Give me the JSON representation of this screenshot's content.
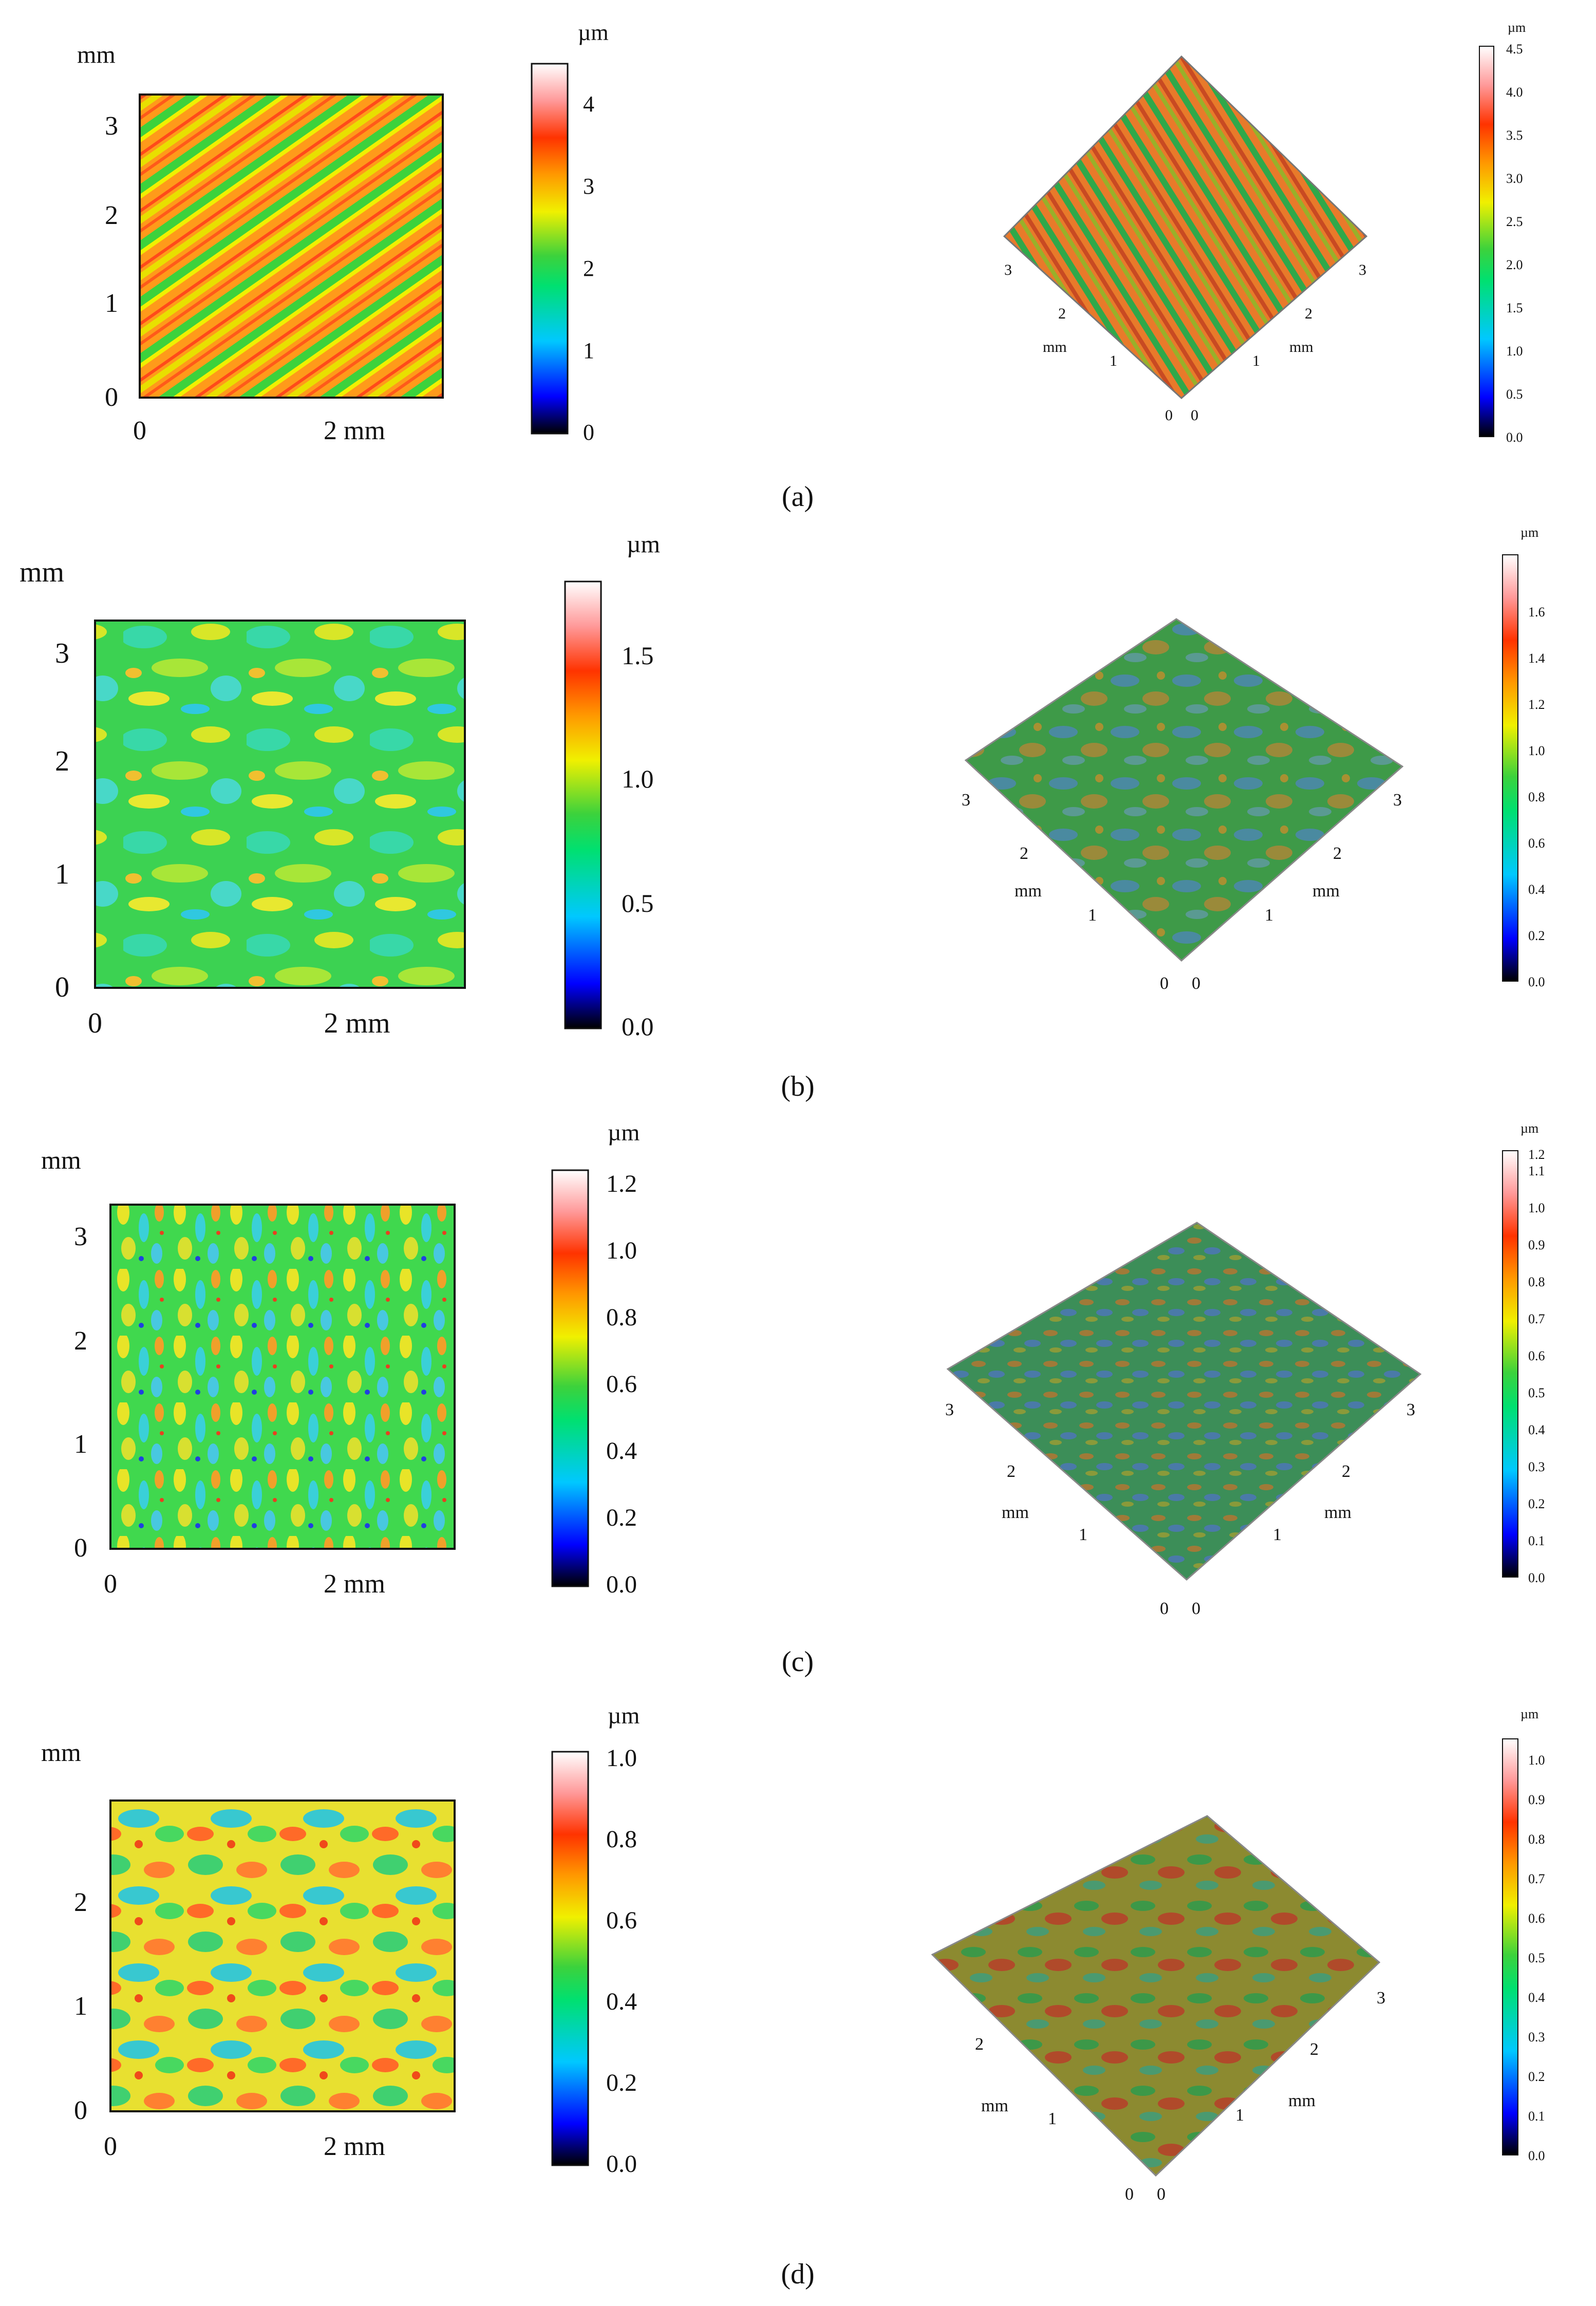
{
  "figure": {
    "panels": [
      {
        "caption": "(a)",
        "caption_letter": "a",
        "map2d": {
          "axis_unit": "mm",
          "y_ticks": [
            "0",
            "1",
            "2",
            "3"
          ],
          "x_ticks": [
            "0",
            "2 mm"
          ],
          "pattern": "diagonal-stripes"
        },
        "colorbar2d": {
          "unit": "µm",
          "ticks": [
            "0",
            "1",
            "2",
            "3",
            "4"
          ],
          "max": 4.5
        },
        "view3d": {
          "left_axis_ticks": [
            "3",
            "2",
            "1",
            "0"
          ],
          "right_axis_ticks": [
            "3",
            "2",
            "1",
            "0"
          ],
          "left_axis_label": "mm",
          "right_axis_label": "mm",
          "pattern": "diagonal-stripes"
        },
        "colorbar3d": {
          "unit": "µm",
          "ticks": [
            "0.0",
            "0.5",
            "1.0",
            "1.5",
            "2.0",
            "2.5",
            "3.0",
            "3.5",
            "4.0",
            "4.5"
          ],
          "max": 4.5
        }
      },
      {
        "caption": "(b)",
        "caption_letter": "b",
        "map2d": {
          "axis_unit": "mm",
          "y_ticks": [
            "0",
            "1",
            "2",
            "3"
          ],
          "x_ticks": [
            "0",
            "2 mm"
          ],
          "pattern": "mottled-green-blue"
        },
        "colorbar2d": {
          "unit": "µm",
          "ticks": [
            "0.0",
            "0.5",
            "1.0",
            "1.5"
          ],
          "max": 1.8
        },
        "view3d": {
          "left_axis_ticks": [
            "3",
            "2",
            "1",
            "0"
          ],
          "right_axis_ticks": [
            "3",
            "2",
            "1",
            "0"
          ],
          "left_axis_label": "mm",
          "right_axis_label": "mm",
          "pattern": "mottled-green-blue"
        },
        "colorbar3d": {
          "unit": "µm",
          "ticks": [
            "0.0",
            "0.2",
            "0.4",
            "0.6",
            "0.8",
            "1.0",
            "1.2",
            "1.4",
            "1.6"
          ],
          "max": 1.8
        }
      },
      {
        "caption": "(c)",
        "caption_letter": "c",
        "map2d": {
          "axis_unit": "mm",
          "y_ticks": [
            "0",
            "1",
            "2",
            "3"
          ],
          "x_ticks": [
            "0",
            "2 mm"
          ],
          "pattern": "speckled-green-yellow"
        },
        "colorbar2d": {
          "unit": "µm",
          "ticks": [
            "0.0",
            "0.2",
            "0.4",
            "0.6",
            "0.8",
            "1.0",
            "1.2"
          ],
          "max": 1.25
        },
        "view3d": {
          "left_axis_ticks": [
            "3",
            "2",
            "1",
            "0"
          ],
          "right_axis_ticks": [
            "3",
            "2",
            "1",
            "0"
          ],
          "left_axis_label": "mm",
          "right_axis_label": "mm",
          "pattern": "speckled-green-yellow"
        },
        "colorbar3d": {
          "unit": "µm",
          "ticks": [
            "0.0",
            "0.1",
            "0.2",
            "0.3",
            "0.4",
            "0.5",
            "0.6",
            "0.7",
            "0.8",
            "0.9",
            "1.0",
            "1.1",
            "1.2"
          ],
          "max": 1.25
        }
      },
      {
        "caption": "(d)",
        "caption_letter": "d",
        "map2d": {
          "axis_unit": "mm",
          "y_ticks": [
            "0",
            "1",
            "2"
          ],
          "x_ticks": [
            "0",
            "2 mm"
          ],
          "pattern": "mottled-yellow-red"
        },
        "colorbar2d": {
          "unit": "µm",
          "ticks": [
            "0.0",
            "0.2",
            "0.4",
            "0.6",
            "0.8",
            "1.0"
          ],
          "max": 1.05
        },
        "view3d": {
          "left_axis_ticks": [
            "2",
            "1",
            "0"
          ],
          "right_axis_ticks": [
            "3",
            "2",
            "1",
            "0"
          ],
          "left_axis_label": "mm",
          "right_axis_label": "mm",
          "pattern": "mottled-yellow-red"
        },
        "colorbar3d": {
          "unit": "µm",
          "ticks": [
            "0.0",
            "0.1",
            "0.2",
            "0.3",
            "0.4",
            "0.5",
            "0.6",
            "0.7",
            "0.8",
            "0.9",
            "1.0"
          ],
          "max": 1.05
        }
      }
    ],
    "colors": {
      "colormap": [
        "#000000",
        "#0000ff",
        "#00c8ff",
        "#00e070",
        "#3cd23c",
        "#f0f000",
        "#ff9900",
        "#ff3300",
        "#ff9999",
        "#ffffff"
      ],
      "axis": "#111111"
    }
  }
}
